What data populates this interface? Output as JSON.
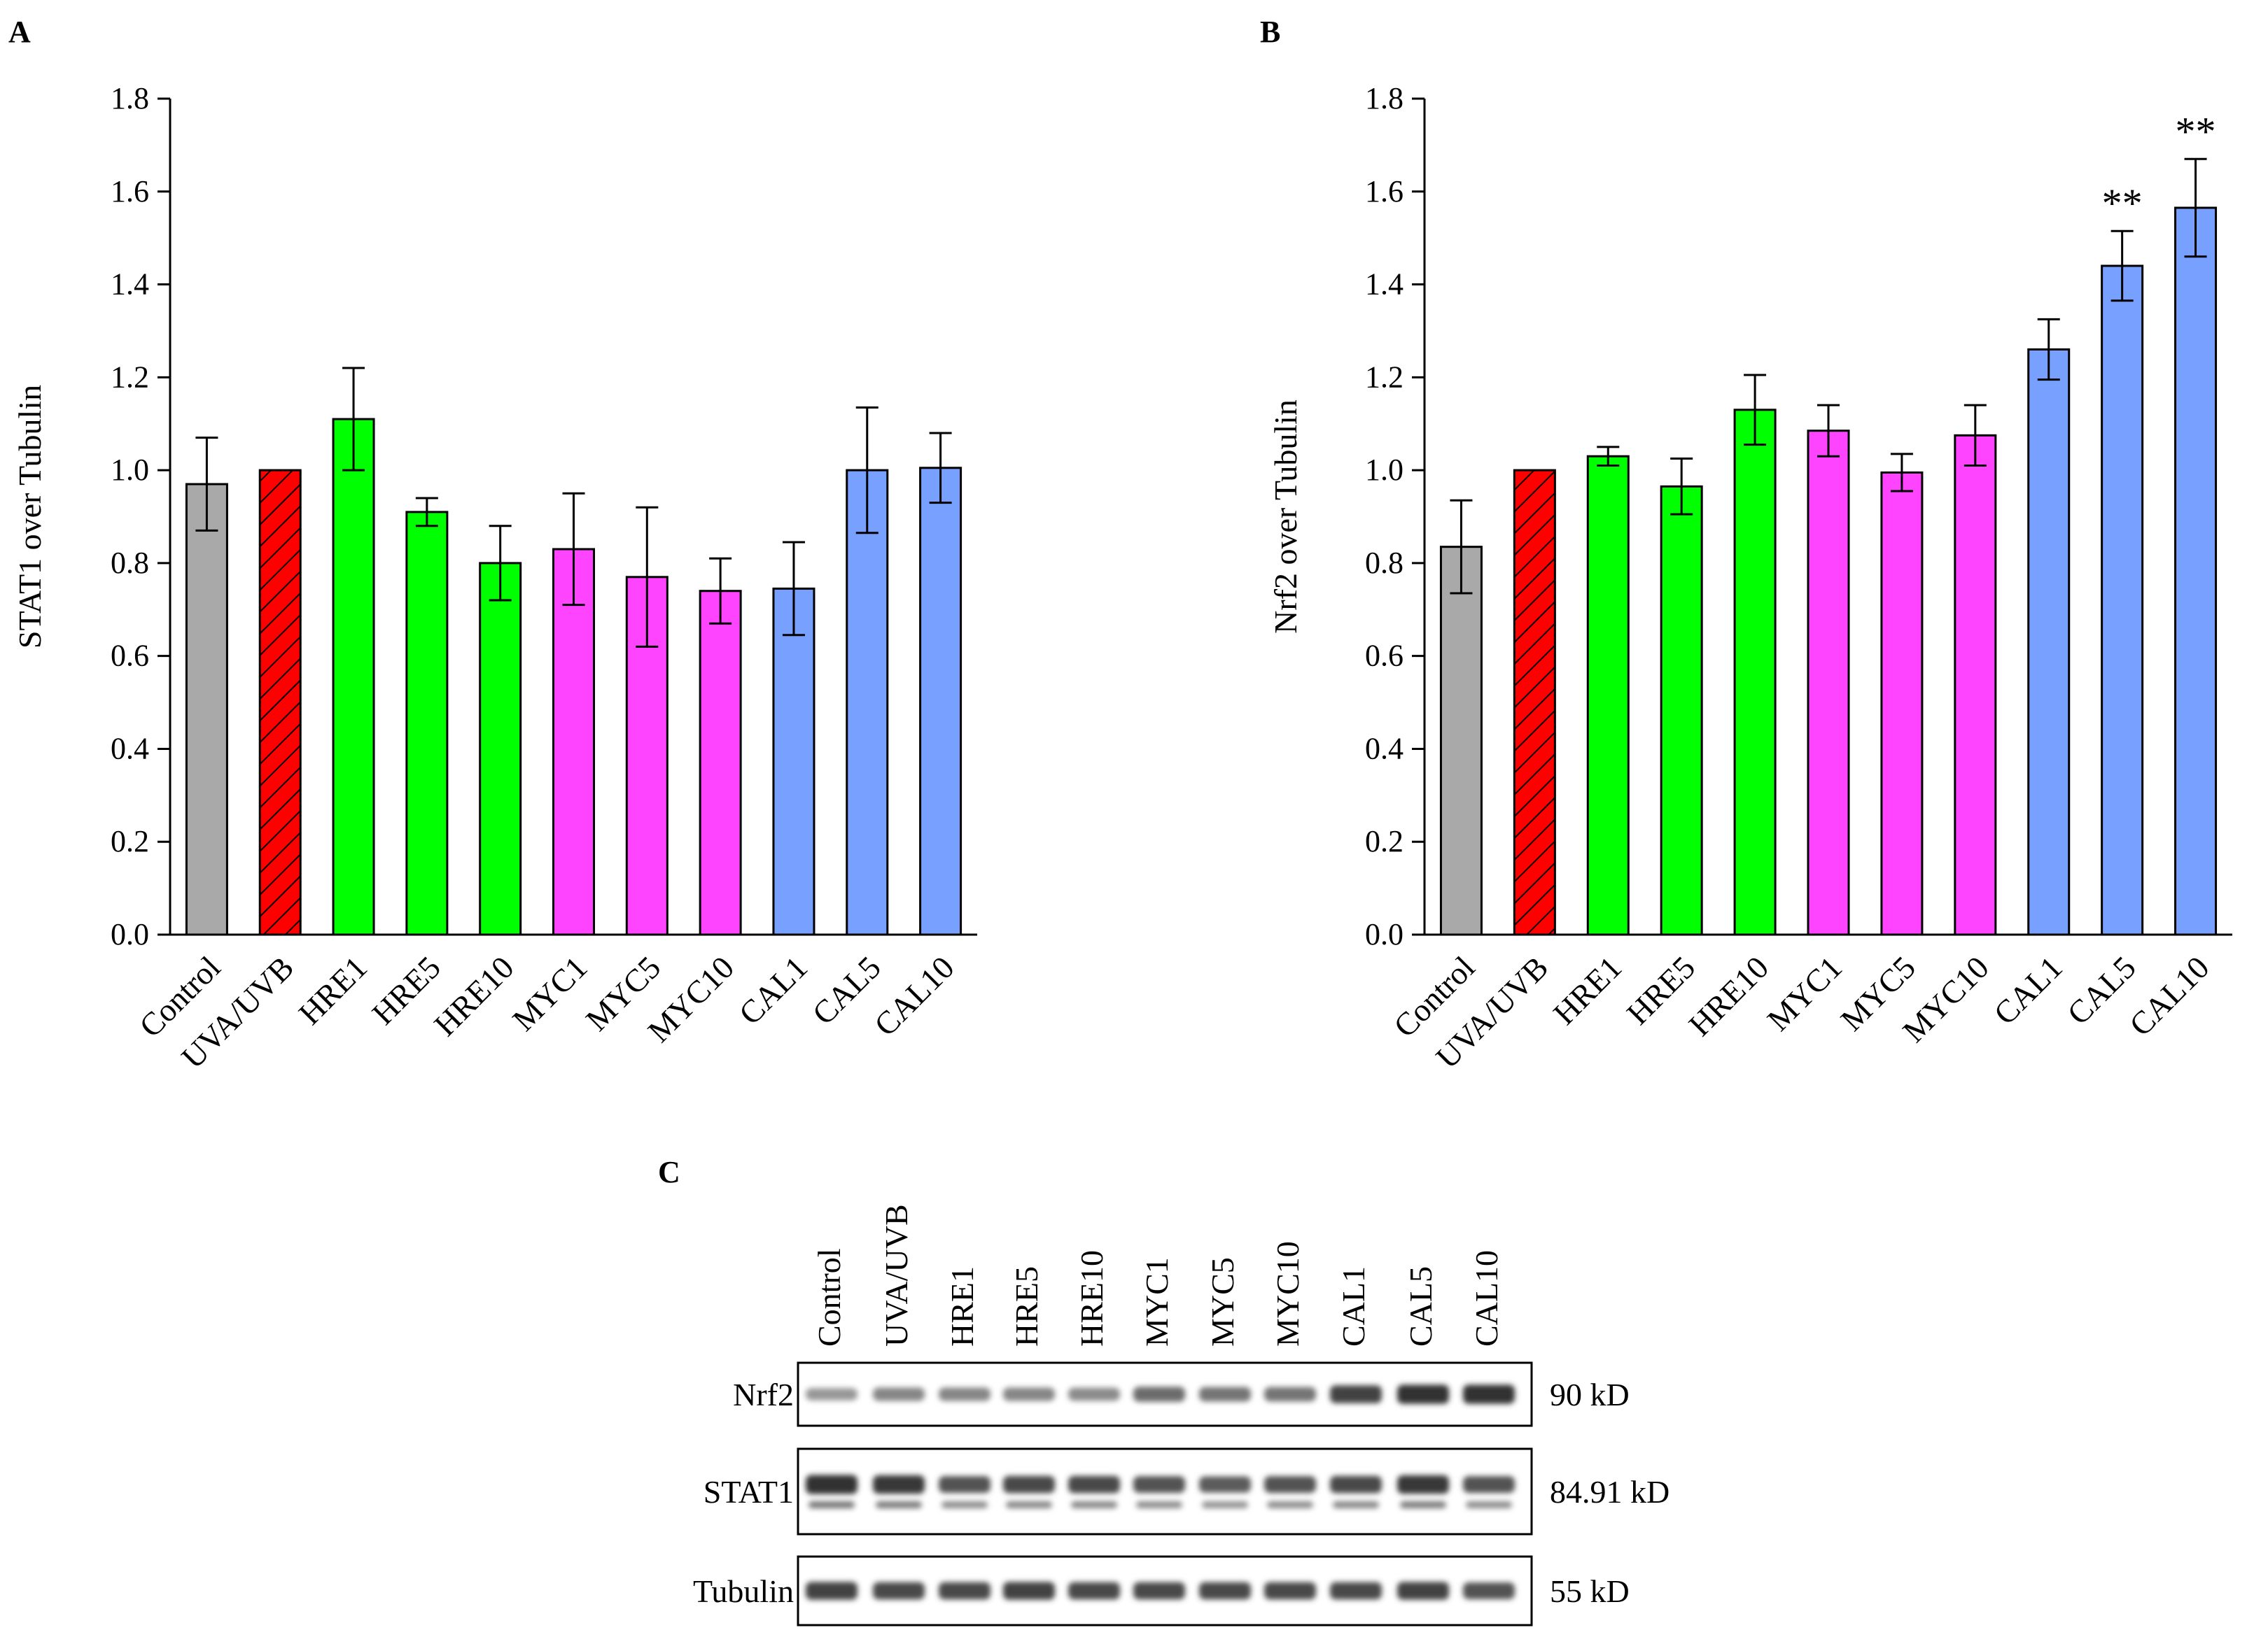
{
  "colors": {
    "control": "#a9a9a9",
    "uva": "#ff0000",
    "hre": "#00ff00",
    "myc": "#ff44ff",
    "cal": "#78a0ff",
    "axis": "#000000"
  },
  "chart_data": [
    {
      "type": "bar",
      "panel": "A",
      "title": "",
      "xlabel": "",
      "ylabel": "STAT1 over Tubulin",
      "ylim": [
        0,
        1.8
      ],
      "yticks": [
        "0.0",
        "0.2",
        "0.4",
        "0.6",
        "0.8",
        "1.0",
        "1.2",
        "1.4",
        "1.6",
        "1.8"
      ],
      "categories": [
        "Control",
        "UVA/UVB",
        "HRE1",
        "HRE5",
        "HRE10",
        "MYC1",
        "MYC5",
        "MYC10",
        "CAL1",
        "CAL5",
        "CAL10"
      ],
      "groups": [
        "control",
        "uva",
        "hre",
        "hre",
        "hre",
        "myc",
        "myc",
        "myc",
        "cal",
        "cal",
        "cal"
      ],
      "values": [
        0.97,
        1.0,
        1.11,
        0.91,
        0.8,
        0.83,
        0.77,
        0.74,
        0.745,
        1.0,
        1.005
      ],
      "errors": [
        0.1,
        0.0,
        0.11,
        0.03,
        0.08,
        0.12,
        0.15,
        0.07,
        0.1,
        0.135,
        0.075
      ],
      "annotations": [
        "",
        "",
        "",
        "",
        "",
        "",
        "",
        "",
        "",
        "",
        ""
      ]
    },
    {
      "type": "bar",
      "panel": "B",
      "title": "",
      "xlabel": "",
      "ylabel": "Nrf2 over Tubulin",
      "ylim": [
        0,
        1.8
      ],
      "yticks": [
        "0.0",
        "0.2",
        "0.4",
        "0.6",
        "0.8",
        "1.0",
        "1.2",
        "1.4",
        "1.6",
        "1.8"
      ],
      "categories": [
        "Control",
        "UVA/UVB",
        "HRE1",
        "HRE5",
        "HRE10",
        "MYC1",
        "MYC5",
        "MYC10",
        "CAL1",
        "CAL5",
        "CAL10"
      ],
      "groups": [
        "control",
        "uva",
        "hre",
        "hre",
        "hre",
        "myc",
        "myc",
        "myc",
        "cal",
        "cal",
        "cal"
      ],
      "values": [
        0.835,
        1.0,
        1.03,
        0.965,
        1.13,
        1.085,
        0.995,
        1.075,
        1.26,
        1.44,
        1.565
      ],
      "errors": [
        0.1,
        0.0,
        0.02,
        0.06,
        0.075,
        0.055,
        0.04,
        0.065,
        0.065,
        0.075,
        0.105
      ],
      "annotations": [
        "",
        "",
        "",
        "",
        "",
        "",
        "",
        "",
        "",
        "**",
        "**"
      ]
    }
  ],
  "blot": {
    "panel": "C",
    "lanes": [
      "Control",
      "UVA/UVB",
      "HRE1",
      "HRE5",
      "HRE10",
      "MYC1",
      "MYC5",
      "MYC10",
      "CAL1",
      "CAL5",
      "CAL10"
    ],
    "rows": [
      {
        "label": "Nrf2",
        "size": "90 kD",
        "intensities": [
          0.35,
          0.45,
          0.45,
          0.45,
          0.42,
          0.6,
          0.55,
          0.55,
          0.85,
          0.95,
          0.95
        ]
      },
      {
        "label": "STAT1",
        "size": "84.91 kD",
        "intensities": [
          0.95,
          0.9,
          0.75,
          0.8,
          0.8,
          0.75,
          0.7,
          0.75,
          0.8,
          0.9,
          0.75
        ]
      },
      {
        "label": "Tubulin",
        "size": "55 kD",
        "intensities": [
          0.85,
          0.8,
          0.8,
          0.85,
          0.8,
          0.8,
          0.8,
          0.8,
          0.8,
          0.85,
          0.75
        ]
      }
    ]
  }
}
